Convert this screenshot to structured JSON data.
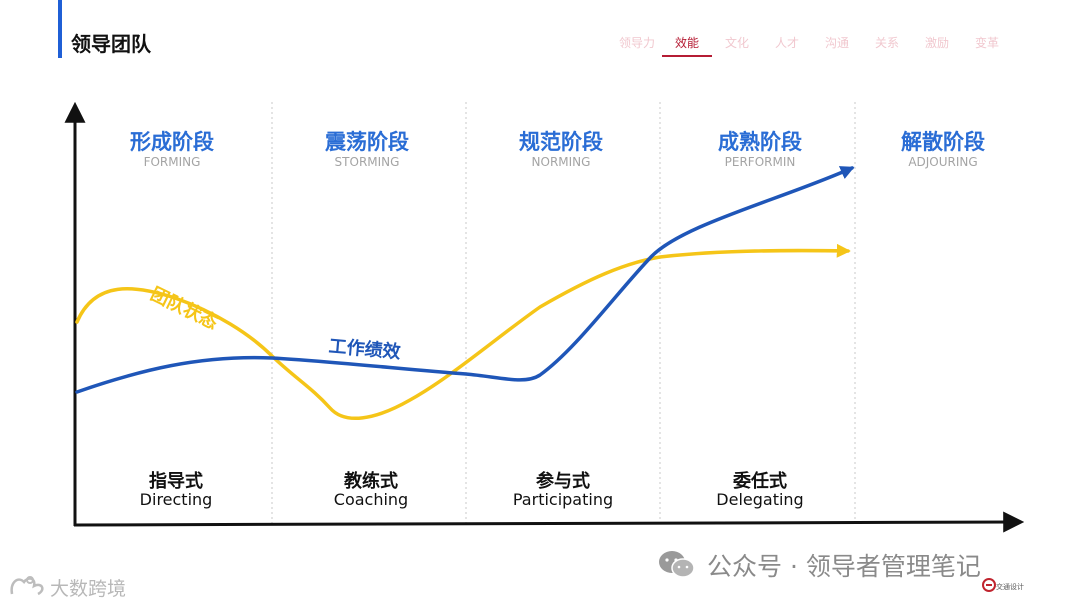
{
  "header": {
    "title": "领导团队",
    "nav": [
      {
        "label": "领导力",
        "active": false
      },
      {
        "label": "效能",
        "active": true
      },
      {
        "label": "文化",
        "active": false
      },
      {
        "label": "人才",
        "active": false
      },
      {
        "label": "沟通",
        "active": false
      },
      {
        "label": "关系",
        "active": false
      },
      {
        "label": "激励",
        "active": false
      },
      {
        "label": "变革",
        "active": false
      }
    ]
  },
  "stages": [
    {
      "cn": "形成阶段",
      "en": "FORMING"
    },
    {
      "cn": "震荡阶段",
      "en": "STORMING"
    },
    {
      "cn": "规范阶段",
      "en": "NORMING"
    },
    {
      "cn": "成熟阶段",
      "en": "PERFORMIN"
    },
    {
      "cn": "解散阶段",
      "en": "ADJOURING"
    }
  ],
  "leadership_styles": [
    {
      "cn": "指导式",
      "en": "Directing"
    },
    {
      "cn": "教练式",
      "en": "Coaching"
    },
    {
      "cn": "参与式",
      "en": "Participating"
    },
    {
      "cn": "委任式",
      "en": "Delegating"
    }
  ],
  "curves": {
    "team_state": {
      "label": "团队状态",
      "color": "#f5c518"
    },
    "performance": {
      "label": "工作绩效",
      "color": "#1f56b8"
    }
  },
  "watermarks": {
    "right": "公众号 · 领导者管理笔记",
    "left": "大数跨境",
    "logo": "交通设计"
  }
}
